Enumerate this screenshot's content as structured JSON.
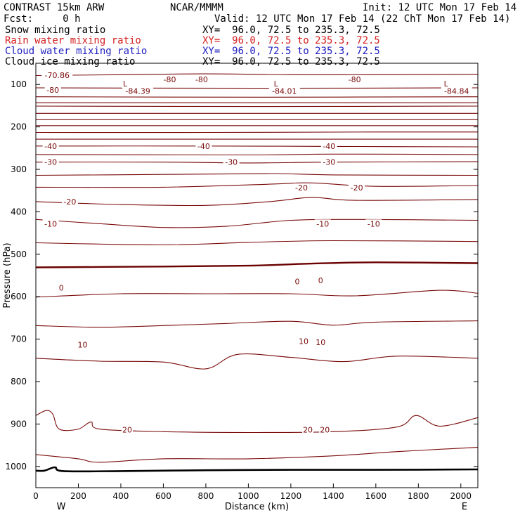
{
  "header": {
    "model": "CONTRAST 15km ARW",
    "fcst": "Fcst:     0 h",
    "org": "NCAR/MMMM",
    "init": "Init: 12 UTC Mon 17 Feb 14",
    "valid": "Valid: 12 UTC Mon 17 Feb 14 (22 ChT Mon 17 Feb 14)",
    "fields": [
      {
        "label": "Snow mixing ratio",
        "xy": "XY=  96.0, 72.5 to 235.3, 72.5",
        "color": "#000000"
      },
      {
        "label": "Rain water mixing ratio",
        "xy": "XY=  96.0, 72.5 to 235.3, 72.5",
        "color": "#d42020"
      },
      {
        "label": "Cloud water mixing ratio",
        "xy": "XY=  96.0, 72.5 to 235.3, 72.5",
        "color": "#2020c0"
      },
      {
        "label": "Cloud ice mixing ratio",
        "xy": "XY=  96.0, 72.5 to 235.3, 72.5",
        "color": "#000000"
      }
    ]
  },
  "chart_data": {
    "type": "line",
    "xlabel": "Distance (km)",
    "ylabel": "Pressure (hPa)",
    "xlim": [
      0,
      2080
    ],
    "ylim": [
      1050,
      50
    ],
    "x_ticks": [
      0,
      200,
      400,
      600,
      800,
      1000,
      1200,
      1400,
      1600,
      1800,
      2000
    ],
    "y_ticks": [
      100,
      200,
      300,
      400,
      500,
      600,
      700,
      800,
      900,
      1000
    ],
    "direction_labels": {
      "left": "W",
      "right": "E"
    },
    "contour_color": "#7a0a0a",
    "zero_contour_color": "#6a0000",
    "terrain_color": "#000000",
    "contours": [
      {
        "label": "-80",
        "points": [
          [
            0,
            79
          ],
          [
            400,
            77
          ],
          [
            800,
            75
          ],
          [
            1200,
            77
          ],
          [
            1600,
            77
          ],
          [
            2080,
            76
          ]
        ]
      },
      {
        "label": "",
        "points": [
          [
            0,
            108
          ],
          [
            1040,
            109
          ],
          [
            2080,
            108
          ]
        ]
      },
      {
        "label": "",
        "points": [
          [
            0,
            129
          ],
          [
            1040,
            130
          ],
          [
            2080,
            129
          ]
        ]
      },
      {
        "label": "",
        "points": [
          [
            0,
            143
          ],
          [
            1040,
            143
          ],
          [
            2080,
            143
          ]
        ]
      },
      {
        "label": "",
        "points": [
          [
            0,
            151
          ],
          [
            1040,
            152
          ],
          [
            2080,
            151
          ]
        ]
      },
      {
        "label": "",
        "points": [
          [
            0,
            168
          ],
          [
            1040,
            168
          ],
          [
            2080,
            168
          ]
        ]
      },
      {
        "label": "",
        "points": [
          [
            0,
            183
          ],
          [
            1040,
            183
          ],
          [
            2080,
            183
          ]
        ]
      },
      {
        "label": "",
        "points": [
          [
            0,
            197
          ],
          [
            1040,
            197
          ],
          [
            2080,
            197
          ]
        ]
      },
      {
        "label": "",
        "points": [
          [
            0,
            213
          ],
          [
            800,
            213
          ],
          [
            1600,
            212
          ],
          [
            2080,
            212
          ]
        ]
      },
      {
        "label": "",
        "points": [
          [
            0,
            229
          ],
          [
            800,
            229
          ],
          [
            1600,
            229
          ],
          [
            2080,
            229
          ]
        ]
      },
      {
        "label": "-40",
        "points": [
          [
            0,
            245
          ],
          [
            800,
            245
          ],
          [
            1400,
            246
          ],
          [
            2080,
            247
          ]
        ]
      },
      {
        "label": "",
        "points": [
          [
            0,
            265
          ],
          [
            1000,
            266
          ],
          [
            1400,
            264
          ],
          [
            2080,
            265
          ]
        ]
      },
      {
        "label": "-30",
        "points": [
          [
            0,
            283
          ],
          [
            600,
            283
          ],
          [
            1000,
            285
          ],
          [
            1400,
            283
          ],
          [
            2080,
            282
          ]
        ]
      },
      {
        "label": "",
        "points": [
          [
            0,
            314
          ],
          [
            600,
            312
          ],
          [
            1100,
            310
          ],
          [
            1400,
            313
          ],
          [
            2080,
            314
          ]
        ]
      },
      {
        "label": "-20",
        "points": [
          [
            0,
            342
          ],
          [
            600,
            342
          ],
          [
            1100,
            335
          ],
          [
            1300,
            332
          ],
          [
            1600,
            340
          ],
          [
            2080,
            338
          ]
        ]
      },
      {
        "label": "",
        "points": [
          [
            0,
            376
          ],
          [
            400,
            383
          ],
          [
            800,
            385
          ],
          [
            1100,
            376
          ],
          [
            1300,
            366
          ],
          [
            1500,
            373
          ],
          [
            2080,
            371
          ]
        ]
      },
      {
        "label": "-10",
        "points": [
          [
            0,
            418
          ],
          [
            300,
            428
          ],
          [
            600,
            437
          ],
          [
            900,
            434
          ],
          [
            1200,
            420
          ],
          [
            1500,
            418
          ],
          [
            2080,
            420
          ]
        ]
      },
      {
        "label": "",
        "points": [
          [
            0,
            473
          ],
          [
            600,
            478
          ],
          [
            1000,
            472
          ],
          [
            1400,
            468
          ],
          [
            2080,
            470
          ]
        ]
      },
      {
        "label": "0",
        "points": [
          [
            0,
            531
          ],
          [
            600,
            529
          ],
          [
            1000,
            527
          ],
          [
            1300,
            522
          ],
          [
            1600,
            519
          ],
          [
            2080,
            521
          ]
        ]
      },
      {
        "label": "",
        "points": [
          [
            0,
            601
          ],
          [
            400,
            593
          ],
          [
            800,
            593
          ],
          [
            1200,
            593
          ],
          [
            1500,
            598
          ],
          [
            1900,
            585
          ],
          [
            2080,
            592
          ]
        ]
      },
      {
        "label": "10",
        "points": [
          [
            0,
            668
          ],
          [
            300,
            672
          ],
          [
            600,
            668
          ],
          [
            900,
            663
          ],
          [
            1200,
            658
          ],
          [
            1400,
            667
          ],
          [
            1600,
            660
          ],
          [
            2080,
            657
          ]
        ]
      },
      {
        "label": "",
        "points": [
          [
            0,
            745
          ],
          [
            300,
            752
          ],
          [
            600,
            754
          ],
          [
            800,
            770
          ],
          [
            950,
            736
          ],
          [
            1200,
            743
          ],
          [
            1450,
            753
          ],
          [
            1700,
            740
          ],
          [
            2080,
            745
          ]
        ]
      },
      {
        "label": "20",
        "points": [
          [
            0,
            880
          ],
          [
            50,
            868
          ],
          [
            80,
            877
          ],
          [
            110,
            912
          ],
          [
            200,
            912
          ],
          [
            260,
            895
          ],
          [
            300,
            912
          ],
          [
            600,
            918
          ],
          [
            1000,
            920
          ],
          [
            1400,
            918
          ],
          [
            1700,
            907
          ],
          [
            1790,
            880
          ],
          [
            1900,
            905
          ],
          [
            2080,
            885
          ]
        ]
      },
      {
        "label": "",
        "points": [
          [
            0,
            972
          ],
          [
            200,
            982
          ],
          [
            300,
            990
          ],
          [
            600,
            982
          ],
          [
            1000,
            982
          ],
          [
            1400,
            975
          ],
          [
            1700,
            965
          ],
          [
            2080,
            955
          ]
        ]
      }
    ],
    "terrain": [
      [
        0,
        1010
      ],
      [
        40,
        1010
      ],
      [
        90,
        1002
      ],
      [
        130,
        1011
      ],
      [
        400,
        1011
      ],
      [
        800,
        1009
      ],
      [
        1200,
        1008
      ],
      [
        1600,
        1008
      ],
      [
        2080,
        1007
      ]
    ],
    "annotations": [
      {
        "text": "-70.86",
        "x": 100,
        "p": 78
      },
      {
        "text": "-80",
        "x": 80,
        "p": 113
      },
      {
        "text": "-80",
        "x": 630,
        "p": 88
      },
      {
        "text": "-80",
        "x": 780,
        "p": 88
      },
      {
        "text": "-80",
        "x": 1500,
        "p": 88
      },
      {
        "text": "L",
        "x": 420,
        "p": 98
      },
      {
        "text": "-84.39",
        "x": 480,
        "p": 115
      },
      {
        "text": "L",
        "x": 1130,
        "p": 98
      },
      {
        "text": "-84.01",
        "x": 1170,
        "p": 115
      },
      {
        "text": "L",
        "x": 1930,
        "p": 98
      },
      {
        "text": "-84.84",
        "x": 1980,
        "p": 115
      },
      {
        "text": "-40",
        "x": 70,
        "p": 245
      },
      {
        "text": "-40",
        "x": 790,
        "p": 245
      },
      {
        "text": "-40",
        "x": 1380,
        "p": 245
      },
      {
        "text": "-30",
        "x": 70,
        "p": 283
      },
      {
        "text": "-30",
        "x": 920,
        "p": 283
      },
      {
        "text": "-30",
        "x": 1380,
        "p": 283
      },
      {
        "text": "-20",
        "x": 160,
        "p": 376
      },
      {
        "text": "-20",
        "x": 1250,
        "p": 343
      },
      {
        "text": "-20",
        "x": 1510,
        "p": 343
      },
      {
        "text": "-10",
        "x": 70,
        "p": 428
      },
      {
        "text": "-10",
        "x": 1350,
        "p": 428
      },
      {
        "text": "-10",
        "x": 1590,
        "p": 428
      },
      {
        "text": "0",
        "x": 120,
        "p": 579
      },
      {
        "text": "0",
        "x": 1230,
        "p": 564
      },
      {
        "text": "0",
        "x": 1340,
        "p": 562
      },
      {
        "text": "10",
        "x": 220,
        "p": 713
      },
      {
        "text": "10",
        "x": 1260,
        "p": 705
      },
      {
        "text": "10",
        "x": 1340,
        "p": 707
      },
      {
        "text": "20",
        "x": 430,
        "p": 913
      },
      {
        "text": "20",
        "x": 1280,
        "p": 913
      },
      {
        "text": "20",
        "x": 1360,
        "p": 913
      }
    ]
  }
}
